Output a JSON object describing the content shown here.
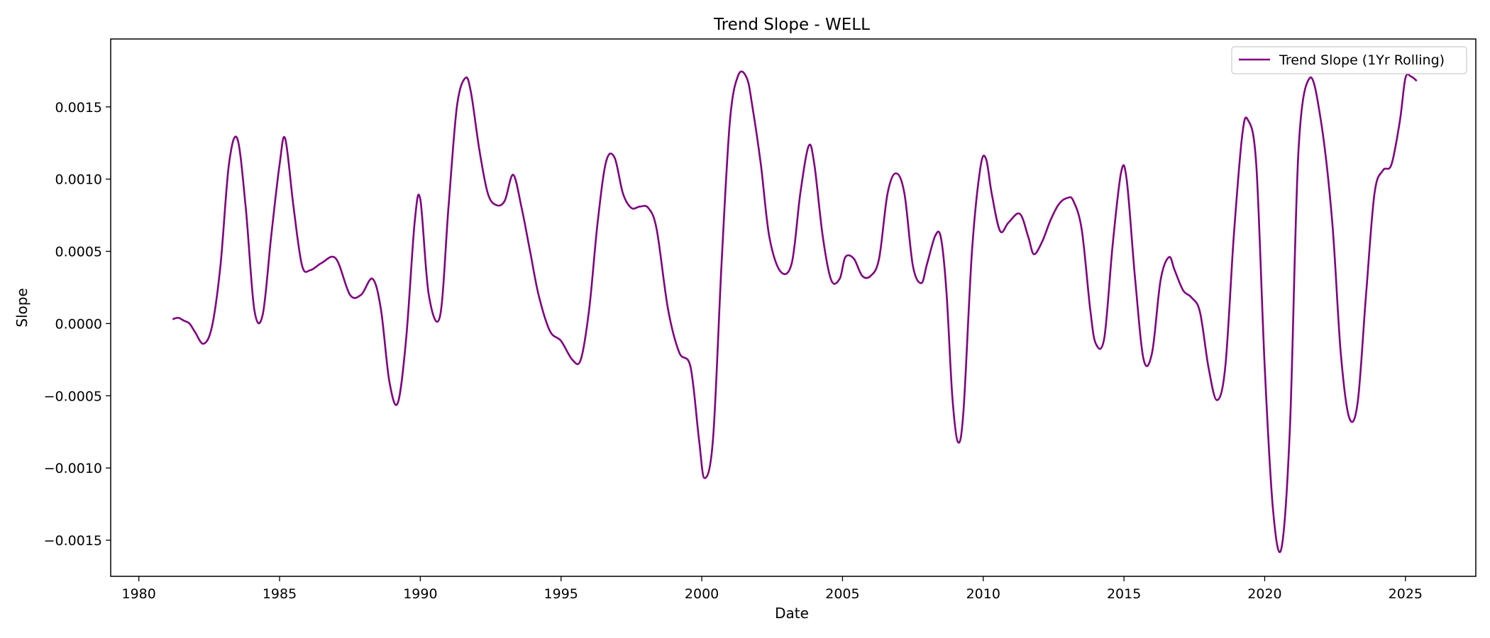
{
  "chart_data": {
    "type": "line",
    "title": "Trend Slope - WELL",
    "xlabel": "Date",
    "ylabel": "Slope",
    "xlim": [
      1979.0,
      2027.5
    ],
    "ylim": [
      -0.00175,
      0.00197
    ],
    "x_ticks": [
      1980,
      1985,
      1990,
      1995,
      2000,
      2005,
      2010,
      2015,
      2020,
      2025
    ],
    "x_tick_labels": [
      "1980",
      "1985",
      "1990",
      "1995",
      "2000",
      "2005",
      "2010",
      "2015",
      "2020",
      "2025"
    ],
    "y_ticks": [
      -0.0015,
      -0.001,
      -0.0005,
      0.0,
      0.0005,
      0.001,
      0.0015
    ],
    "y_tick_labels": [
      "−0.0015",
      "−0.0010",
      "−0.0005",
      "0.0000",
      "0.0005",
      "0.0010",
      "0.0015"
    ],
    "grid": false,
    "legend_position": "top-right",
    "series": [
      {
        "name": "Trend Slope (1Yr Rolling)",
        "color": "#800080",
        "x": [
          1981.2,
          1981.4,
          1981.6,
          1981.8,
          1982.0,
          1982.3,
          1982.6,
          1982.9,
          1983.2,
          1983.5,
          1983.8,
          1984.1,
          1984.4,
          1984.7,
          1985.0,
          1985.2,
          1985.5,
          1985.8,
          1986.1,
          1986.5,
          1987.0,
          1987.5,
          1987.9,
          1988.3,
          1988.6,
          1988.9,
          1989.2,
          1989.5,
          1989.8,
          1990.0,
          1990.3,
          1990.7,
          1991.0,
          1991.3,
          1991.6,
          1991.8,
          1992.1,
          1992.4,
          1992.7,
          1993.0,
          1993.3,
          1993.6,
          1993.9,
          1994.2,
          1994.6,
          1995.0,
          1995.4,
          1995.7,
          1996.0,
          1996.3,
          1996.6,
          1996.9,
          1997.2,
          1997.5,
          1997.8,
          1998.1,
          1998.4,
          1998.8,
          1999.2,
          1999.6,
          1999.9,
          2000.1,
          2000.4,
          2000.7,
          2001.0,
          2001.3,
          2001.6,
          2001.8,
          2002.1,
          2002.4,
          2002.8,
          2003.2,
          2003.5,
          2003.8,
          2004.0,
          2004.3,
          2004.6,
          2004.9,
          2005.1,
          2005.4,
          2005.7,
          2006.0,
          2006.3,
          2006.6,
          2006.9,
          2007.2,
          2007.5,
          2007.8,
          2008.0,
          2008.3,
          2008.5,
          2008.7,
          2008.9,
          2009.1,
          2009.3,
          2009.6,
          2009.9,
          2010.1,
          2010.3,
          2010.6,
          2010.9,
          2011.3,
          2011.6,
          2011.8,
          2012.1,
          2012.4,
          2012.7,
          2013.0,
          2013.2,
          2013.5,
          2013.8,
          2014.0,
          2014.3,
          2014.6,
          2014.9,
          2015.1,
          2015.4,
          2015.7,
          2016.0,
          2016.3,
          2016.6,
          2016.8,
          2017.1,
          2017.4,
          2017.7,
          2018.0,
          2018.3,
          2018.6,
          2018.9,
          2019.2,
          2019.4,
          2019.7,
          2020.0,
          2020.3,
          2020.6,
          2020.9,
          2021.2,
          2021.6,
          2022.0,
          2022.4,
          2022.7,
          2023.0,
          2023.3,
          2023.6,
          2023.9,
          2024.2,
          2024.5,
          2024.8,
          2025.0,
          2025.2,
          2025.4
        ],
        "y": [
          3e-05,
          4e-05,
          2e-05,
          0.0,
          -6e-05,
          -0.00014,
          -2e-05,
          0.0004,
          0.0011,
          0.00128,
          0.0008,
          0.0001,
          6e-05,
          0.0006,
          0.0011,
          0.00128,
          0.0008,
          0.0004,
          0.00037,
          0.00042,
          0.00045,
          0.0002,
          0.0002,
          0.00031,
          0.0001,
          -0.0004,
          -0.00055,
          -0.0001,
          0.0007,
          0.00086,
          0.0002,
          5e-05,
          0.0008,
          0.0015,
          0.0017,
          0.0016,
          0.0012,
          0.0009,
          0.00082,
          0.00085,
          0.00103,
          0.0008,
          0.0005,
          0.0002,
          -5e-05,
          -0.00012,
          -0.00025,
          -0.00025,
          0.0001,
          0.0007,
          0.00112,
          0.00115,
          0.0009,
          0.0008,
          0.00081,
          0.0008,
          0.00065,
          0.0001,
          -0.0002,
          -0.0003,
          -0.0008,
          -0.00107,
          -0.0008,
          0.0004,
          0.0014,
          0.00172,
          0.0017,
          0.0015,
          0.0011,
          0.0006,
          0.00036,
          0.00042,
          0.0009,
          0.00123,
          0.0011,
          0.0006,
          0.0003,
          0.00031,
          0.00046,
          0.00045,
          0.00033,
          0.00033,
          0.00045,
          0.0009,
          0.00104,
          0.0009,
          0.0004,
          0.00028,
          0.00041,
          0.00061,
          0.00059,
          0.0002,
          -0.0005,
          -0.00082,
          -0.0006,
          0.0005,
          0.00108,
          0.00114,
          0.0009,
          0.00064,
          0.0007,
          0.00076,
          0.0006,
          0.00048,
          0.00057,
          0.00072,
          0.00083,
          0.00087,
          0.00085,
          0.00065,
          0.0001,
          -0.00014,
          -0.0001,
          0.00055,
          0.00105,
          0.00099,
          0.0003,
          -0.00025,
          -0.0002,
          0.0003,
          0.00046,
          0.00037,
          0.00023,
          0.00018,
          8e-05,
          -0.0003,
          -0.00053,
          -0.0003,
          0.0006,
          0.0013,
          0.00141,
          0.0011,
          -0.0003,
          -0.0013,
          -0.00155,
          -0.0007,
          0.0012,
          0.0017,
          0.0014,
          0.0007,
          -0.0002,
          -0.00065,
          -0.00055,
          0.0002,
          0.0009,
          0.00106,
          0.0011,
          0.0014,
          0.0017,
          0.00171,
          0.00168
        ]
      }
    ]
  }
}
